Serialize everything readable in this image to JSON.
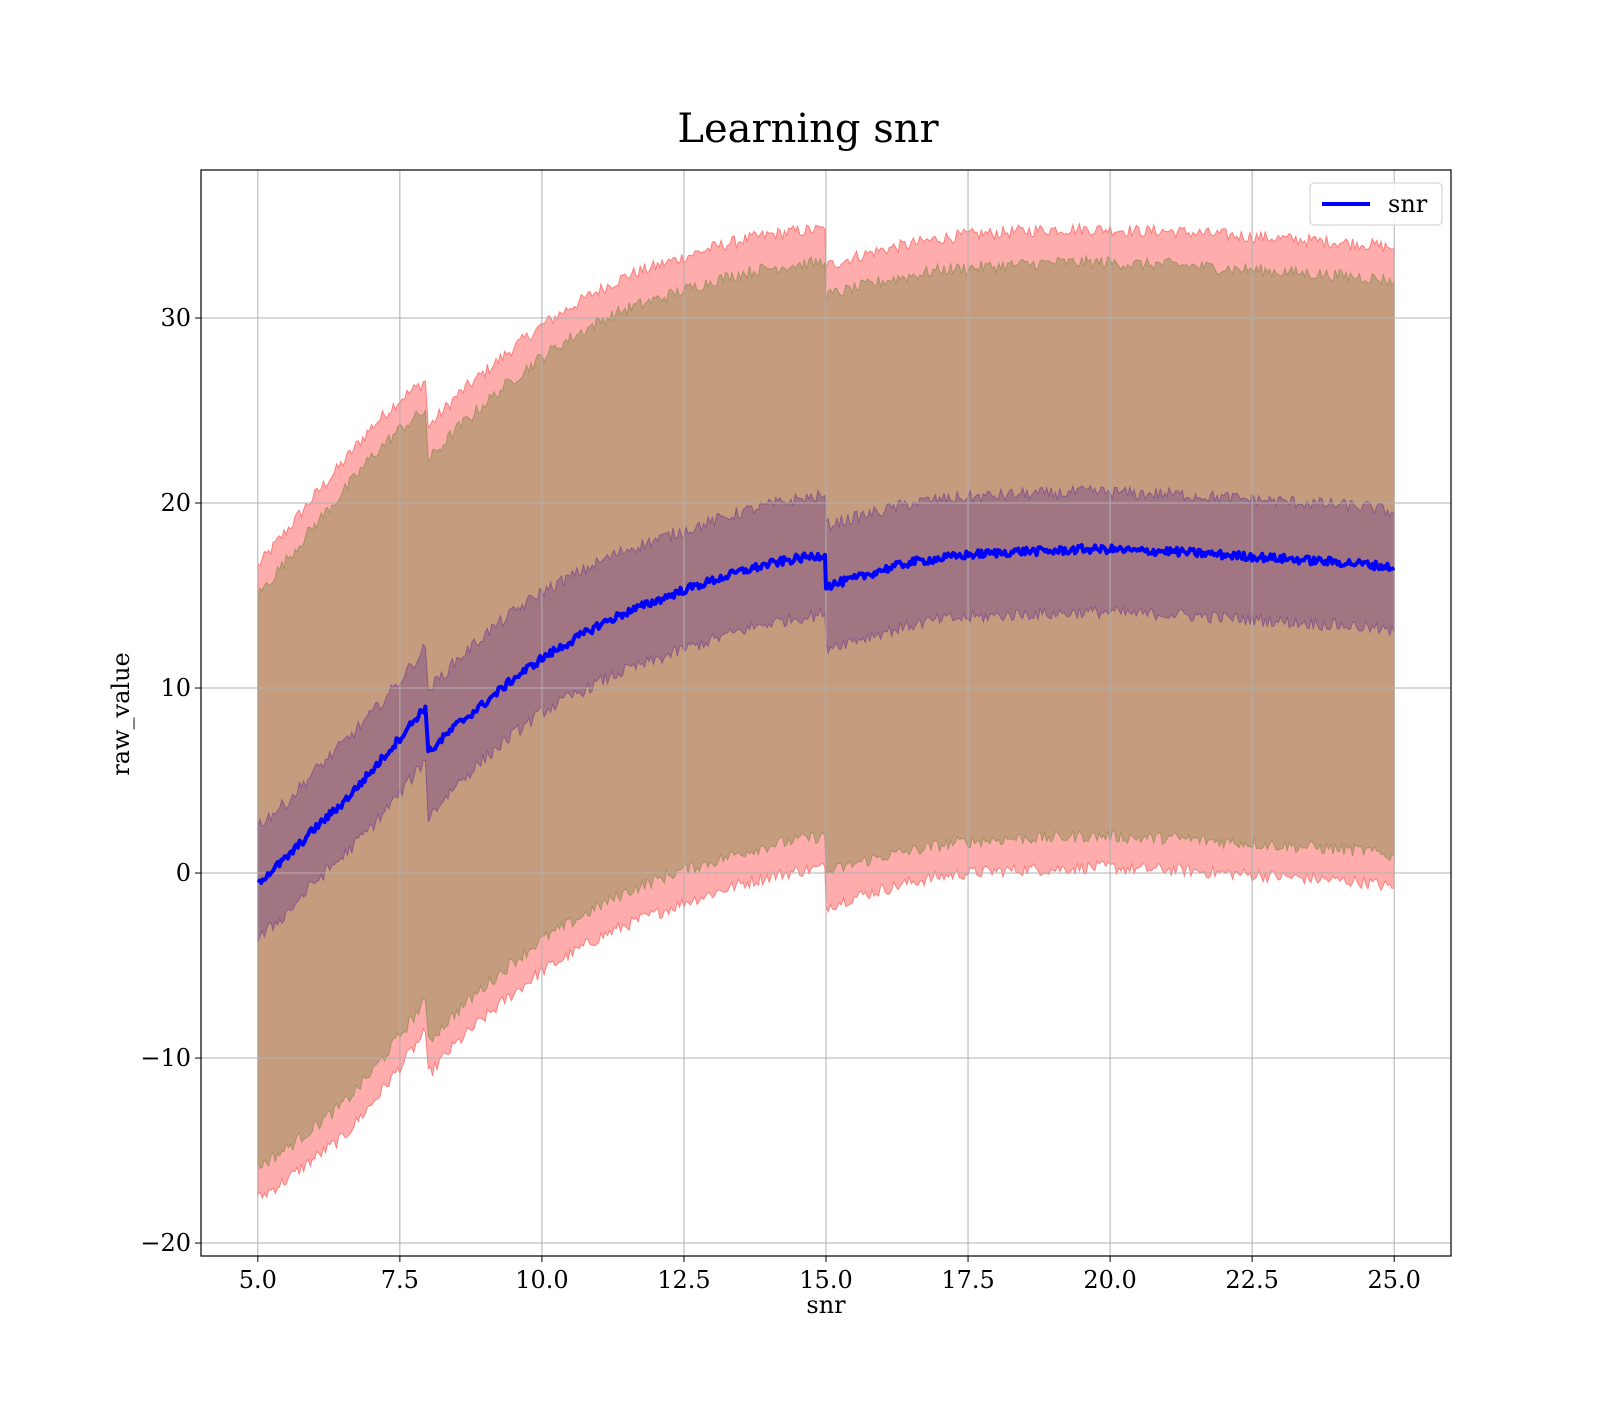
{
  "chart_data": {
    "type": "line",
    "title": "Learning snr",
    "xlabel": "snr",
    "ylabel": "raw_value",
    "xlim": [
      4.0,
      26.0
    ],
    "ylim": [
      -20.7,
      38.0
    ],
    "xticks": [
      5.0,
      7.5,
      10.0,
      12.5,
      15.0,
      17.5,
      20.0,
      22.5,
      25.0
    ],
    "xtick_labels": [
      "5.0",
      "7.5",
      "10.0",
      "12.5",
      "15.0",
      "17.5",
      "20.0",
      "22.5",
      "25.0"
    ],
    "yticks": [
      -20,
      -10,
      0,
      10,
      20,
      30
    ],
    "ytick_labels": [
      "−20",
      "−10",
      "0",
      "10",
      "20",
      "30"
    ],
    "grid": true,
    "legend": {
      "position": "top-right",
      "entries": [
        {
          "label": "snr",
          "color": "#0000ff"
        }
      ]
    },
    "series": [
      {
        "name": "snr",
        "color": "#0000ff",
        "x": [
          5.0,
          5.5,
          6.0,
          6.5,
          7.0,
          7.5,
          7.95,
          8.0,
          8.5,
          9.0,
          9.5,
          10.0,
          10.5,
          11.0,
          11.5,
          12.0,
          12.5,
          13.0,
          13.5,
          14.0,
          14.5,
          14.98,
          15.0,
          15.5,
          16.0,
          16.5,
          17.0,
          17.5,
          18.0,
          18.5,
          19.0,
          19.5,
          20.0,
          20.5,
          21.0,
          21.5,
          22.0,
          22.5,
          23.0,
          23.5,
          24.0,
          24.5,
          25.0
        ],
        "values": [
          -0.5,
          0.8,
          2.4,
          3.8,
          5.5,
          7.3,
          9.0,
          6.5,
          8.0,
          9.2,
          10.5,
          11.6,
          12.5,
          13.4,
          14.1,
          14.7,
          15.3,
          15.8,
          16.3,
          16.7,
          17.0,
          17.2,
          15.5,
          15.9,
          16.4,
          16.8,
          17.0,
          17.2,
          17.3,
          17.4,
          17.4,
          17.5,
          17.5,
          17.4,
          17.4,
          17.3,
          17.2,
          17.1,
          17.0,
          16.9,
          16.8,
          16.7,
          16.5
        ]
      }
    ],
    "bands": [
      {
        "color": "#ff5a5a",
        "opacity": 0.5,
        "upper": [
          16.6,
          18.5,
          20.4,
          22.2,
          24.1,
          25.6,
          26.6,
          24.1,
          25.8,
          27.1,
          28.4,
          29.6,
          30.6,
          31.5,
          32.3,
          32.8,
          33.3,
          33.8,
          34.2,
          34.5,
          34.7,
          34.8,
          32.8,
          33.3,
          33.7,
          34.0,
          34.3,
          34.5,
          34.6,
          34.7,
          34.8,
          34.8,
          34.8,
          34.7,
          34.7,
          34.6,
          34.5,
          34.4,
          34.3,
          34.2,
          34.1,
          34.0,
          33.8
        ],
        "lower": [
          -17.6,
          -16.6,
          -15.4,
          -14.3,
          -12.5,
          -10.5,
          -8.6,
          -10.9,
          -9.2,
          -7.8,
          -6.5,
          -5.3,
          -4.4,
          -3.5,
          -2.8,
          -2.2,
          -1.6,
          -1.1,
          -0.6,
          -0.2,
          0.1,
          0.3,
          -1.8,
          -1.3,
          -0.9,
          -0.5,
          -0.2,
          0.0,
          0.1,
          0.2,
          0.2,
          0.3,
          0.3,
          0.2,
          0.2,
          0.1,
          0.0,
          -0.1,
          -0.2,
          -0.3,
          -0.4,
          -0.5,
          -0.8
        ]
      },
      {
        "color": "#8c8c50",
        "opacity": 0.5,
        "upper": [
          15.0,
          16.9,
          18.8,
          20.6,
          22.5,
          24.0,
          25.0,
          22.3,
          24.0,
          25.4,
          26.7,
          27.9,
          28.9,
          29.8,
          30.5,
          31.0,
          31.5,
          32.0,
          32.4,
          32.7,
          32.9,
          33.0,
          31.2,
          31.6,
          32.0,
          32.3,
          32.6,
          32.7,
          32.8,
          32.9,
          33.0,
          33.0,
          33.0,
          32.9,
          32.9,
          32.8,
          32.7,
          32.6,
          32.5,
          32.4,
          32.3,
          32.2,
          32.0
        ],
        "lower": [
          -15.9,
          -14.9,
          -13.7,
          -12.5,
          -10.8,
          -8.8,
          -6.9,
          -9.1,
          -7.5,
          -6.1,
          -4.8,
          -3.6,
          -2.7,
          -1.8,
          -1.0,
          -0.4,
          0.2,
          0.6,
          1.1,
          1.5,
          1.8,
          2.0,
          0.0,
          0.5,
          0.9,
          1.2,
          1.5,
          1.7,
          1.8,
          1.9,
          1.9,
          2.0,
          2.0,
          1.9,
          1.9,
          1.8,
          1.7,
          1.6,
          1.5,
          1.4,
          1.3,
          1.2,
          0.9
        ]
      },
      {
        "color": "#6e3c8c",
        "opacity": 0.4,
        "upper": [
          2.6,
          3.8,
          5.5,
          7.0,
          8.6,
          10.4,
          12.2,
          9.9,
          11.5,
          12.9,
          14.1,
          15.2,
          16.0,
          16.8,
          17.5,
          18.0,
          18.5,
          19.0,
          19.5,
          19.9,
          20.2,
          20.4,
          18.8,
          19.2,
          19.6,
          20.0,
          20.2,
          20.3,
          20.4,
          20.5,
          20.5,
          20.6,
          20.6,
          20.5,
          20.5,
          20.4,
          20.3,
          20.2,
          20.1,
          20.0,
          19.9,
          19.8,
          19.5
        ],
        "lower": [
          -3.6,
          -2.2,
          -0.5,
          0.9,
          2.5,
          4.3,
          6.1,
          3.0,
          4.8,
          6.2,
          7.5,
          8.7,
          9.5,
          10.3,
          11.0,
          11.5,
          12.1,
          12.6,
          13.1,
          13.5,
          13.8,
          14.0,
          12.2,
          12.6,
          13.0,
          13.4,
          13.7,
          13.8,
          13.9,
          14.0,
          14.0,
          14.1,
          14.1,
          14.0,
          14.0,
          13.9,
          13.8,
          13.7,
          13.6,
          13.5,
          13.4,
          13.3,
          13.0
        ]
      }
    ]
  }
}
